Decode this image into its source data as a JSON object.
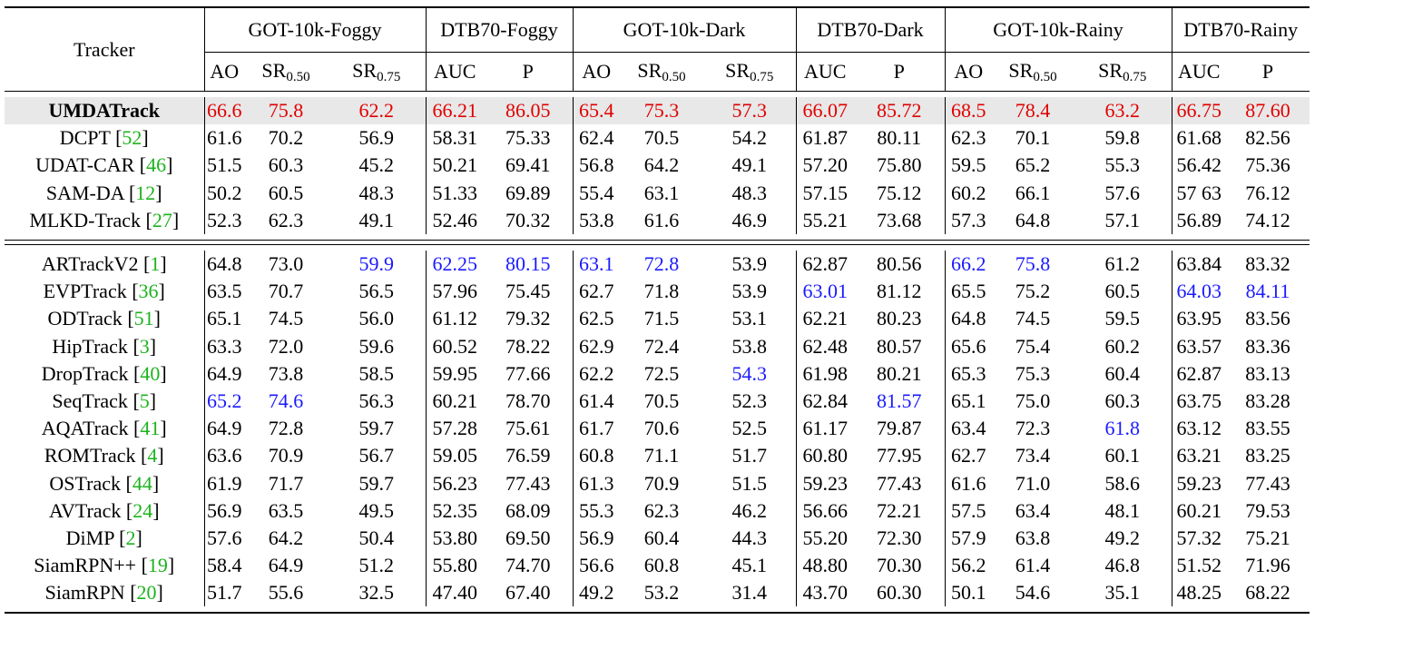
{
  "header": {
    "tracker_label": "Tracker",
    "groups": [
      "GOT-10k-Foggy",
      "DTB70-Foggy",
      "GOT-10k-Dark",
      "DTB70-Dark",
      "GOT-10k-Rainy",
      "DTB70-Rainy"
    ],
    "metrics": {
      "ao": "AO",
      "sr": "SR",
      "sr50_sub": "0.50",
      "sr75_sub": "0.75",
      "auc": "AUC",
      "p": "P"
    }
  },
  "section1": [
    {
      "name": "UMDATrack",
      "cite": "",
      "highlight": true,
      "values": [
        "66.6",
        "75.8",
        "62.2",
        "66.21",
        "86.05",
        "65.4",
        "75.3",
        "57.3",
        "66.07",
        "85.72",
        "68.5",
        "78.4",
        "63.2",
        "66.75",
        "87.60"
      ],
      "colors": [
        "r",
        "r",
        "r",
        "r",
        "r",
        "r",
        "r",
        "r",
        "r",
        "r",
        "r",
        "r",
        "r",
        "r",
        "r"
      ]
    },
    {
      "name": "DCPT",
      "cite": "52",
      "highlight": false,
      "values": [
        "61.6",
        "70.2",
        "56.9",
        "58.31",
        "75.33",
        "62.4",
        "70.5",
        "54.2",
        "61.87",
        "80.11",
        "62.3",
        "70.1",
        "59.8",
        "61.68",
        "82.56"
      ],
      "colors": [
        "",
        "",
        "",
        "",
        "",
        "",
        "",
        "",
        "",
        "",
        "",
        "",
        "",
        "",
        ""
      ]
    },
    {
      "name": "UDAT-CAR",
      "cite": "46",
      "highlight": false,
      "values": [
        "51.5",
        "60.3",
        "45.2",
        "50.21",
        "69.41",
        "56.8",
        "64.2",
        "49.1",
        "57.20",
        "75.80",
        "59.5",
        "65.2",
        "55.3",
        "56.42",
        "75.36"
      ],
      "colors": [
        "",
        "",
        "",
        "",
        "",
        "",
        "",
        "",
        "",
        "",
        "",
        "",
        "",
        "",
        ""
      ]
    },
    {
      "name": "SAM-DA",
      "cite": "12",
      "highlight": false,
      "values": [
        "50.2",
        "60.5",
        "48.3",
        "51.33",
        "69.89",
        "55.4",
        "63.1",
        "48.3",
        "57.15",
        "75.12",
        "60.2",
        "66.1",
        "57.6",
        "57 63",
        "76.12"
      ],
      "colors": [
        "",
        "",
        "",
        "",
        "",
        "",
        "",
        "",
        "",
        "",
        "",
        "",
        "",
        "",
        ""
      ]
    },
    {
      "name": "MLKD-Track",
      "cite": "27",
      "highlight": false,
      "values": [
        "52.3",
        "62.3",
        "49.1",
        "52.46",
        "70.32",
        "53.8",
        "61.6",
        "46.9",
        "55.21",
        "73.68",
        "57.3",
        "64.8",
        "57.1",
        "56.89",
        "74.12"
      ],
      "colors": [
        "",
        "",
        "",
        "",
        "",
        "",
        "",
        "",
        "",
        "",
        "",
        "",
        "",
        "",
        ""
      ]
    }
  ],
  "section2": [
    {
      "name": "ARTrackV2",
      "cite": "1",
      "values": [
        "64.8",
        "73.0",
        "59.9",
        "62.25",
        "80.15",
        "63.1",
        "72.8",
        "53.9",
        "62.87",
        "80.56",
        "66.2",
        "75.8",
        "61.2",
        "63.84",
        "83.32"
      ],
      "colors": [
        "",
        "",
        "b",
        "b",
        "b",
        "b",
        "b",
        "",
        "",
        "",
        "b",
        "b",
        "",
        "",
        ""
      ]
    },
    {
      "name": "EVPTrack",
      "cite": "36",
      "values": [
        "63.5",
        "70.7",
        "56.5",
        "57.96",
        "75.45",
        "62.7",
        "71.8",
        "53.9",
        "63.01",
        "81.12",
        "65.5",
        "75.2",
        "60.5",
        "64.03",
        "84.11"
      ],
      "colors": [
        "",
        "",
        "",
        "",
        "",
        "",
        "",
        "",
        "b",
        "",
        "",
        "",
        "",
        "b",
        "b"
      ]
    },
    {
      "name": "ODTrack",
      "cite": "51",
      "values": [
        "65.1",
        "74.5",
        "56.0",
        "61.12",
        "79.32",
        "62.5",
        "71.5",
        "53.1",
        "62.21",
        "80.23",
        "64.8",
        "74.5",
        "59.5",
        "63.95",
        "83.56"
      ],
      "colors": [
        "",
        "",
        "",
        "",
        "",
        "",
        "",
        "",
        "",
        "",
        "",
        "",
        "",
        "",
        ""
      ]
    },
    {
      "name": "HipTrack",
      "cite": "3",
      "values": [
        "63.3",
        "72.0",
        "59.6",
        "60.52",
        "78.22",
        "62.9",
        "72.4",
        "53.8",
        "62.48",
        "80.57",
        "65.6",
        "75.4",
        "60.2",
        "63.57",
        "83.36"
      ],
      "colors": [
        "",
        "",
        "",
        "",
        "",
        "",
        "",
        "",
        "",
        "",
        "",
        "",
        "",
        "",
        ""
      ]
    },
    {
      "name": "DropTrack",
      "cite": "40",
      "values": [
        "64.9",
        "73.8",
        "58.5",
        "59.95",
        "77.66",
        "62.2",
        "72.5",
        "54.3",
        "61.98",
        "80.21",
        "65.3",
        "75.3",
        "60.4",
        "62.87",
        "83.13"
      ],
      "colors": [
        "",
        "",
        "",
        "",
        "",
        "",
        "",
        "b",
        "",
        "",
        "",
        "",
        "",
        "",
        ""
      ]
    },
    {
      "name": "SeqTrack",
      "cite": "5",
      "values": [
        "65.2",
        "74.6",
        "56.3",
        "60.21",
        "78.70",
        "61.4",
        "70.5",
        "52.3",
        "62.84",
        "81.57",
        "65.1",
        "75.0",
        "60.3",
        "63.75",
        "83.28"
      ],
      "colors": [
        "b",
        "b",
        "",
        "",
        "",
        "",
        "",
        "",
        "",
        "b",
        "",
        "",
        "",
        "",
        ""
      ]
    },
    {
      "name": "AQATrack",
      "cite": "41",
      "values": [
        "64.9",
        "72.8",
        "59.7",
        "57.28",
        "75.61",
        "61.7",
        "70.6",
        "52.5",
        "61.17",
        "79.87",
        "63.4",
        "72.3",
        "61.8",
        "63.12",
        "83.55"
      ],
      "colors": [
        "",
        "",
        "",
        "",
        "",
        "",
        "",
        "",
        "",
        "",
        "",
        "",
        "b",
        "",
        ""
      ]
    },
    {
      "name": "ROMTrack",
      "cite": "4",
      "values": [
        "63.6",
        "70.9",
        "56.7",
        "59.05",
        "76.59",
        "60.8",
        "71.1",
        "51.7",
        "60.80",
        "77.95",
        "62.7",
        "73.4",
        "60.1",
        "63.21",
        "83.25"
      ],
      "colors": [
        "",
        "",
        "",
        "",
        "",
        "",
        "",
        "",
        "",
        "",
        "",
        "",
        "",
        "",
        ""
      ]
    },
    {
      "name": "OSTrack",
      "cite": "44",
      "values": [
        "61.9",
        "71.7",
        "59.7",
        "56.23",
        "77.43",
        "61.3",
        "70.9",
        "51.5",
        "59.23",
        "77.43",
        "61.6",
        "71.0",
        "58.6",
        "59.23",
        "77.43"
      ],
      "colors": [
        "",
        "",
        "",
        "",
        "",
        "",
        "",
        "",
        "",
        "",
        "",
        "",
        "",
        "",
        ""
      ]
    },
    {
      "name": "AVTrack",
      "cite": "24",
      "values": [
        "56.9",
        "63.5",
        "49.5",
        "52.35",
        "68.09",
        "55.3",
        "62.3",
        "46.2",
        "56.66",
        "72.21",
        "57.5",
        "63.4",
        "48.1",
        "60.21",
        "79.53"
      ],
      "colors": [
        "",
        "",
        "",
        "",
        "",
        "",
        "",
        "",
        "",
        "",
        "",
        "",
        "",
        "",
        ""
      ]
    },
    {
      "name": "DiMP",
      "cite": "2",
      "values": [
        "57.6",
        "64.2",
        "50.4",
        "53.80",
        "69.50",
        "56.9",
        "60.4",
        "44.3",
        "55.20",
        "72.30",
        "57.9",
        "63.8",
        "49.2",
        "57.32",
        "75.21"
      ],
      "colors": [
        "",
        "",
        "",
        "",
        "",
        "",
        "",
        "",
        "",
        "",
        "",
        "",
        "",
        "",
        ""
      ]
    },
    {
      "name": "SiamRPN++",
      "cite": "19",
      "values": [
        "58.4",
        "64.9",
        "51.2",
        "55.80",
        "74.70",
        "56.6",
        "60.8",
        "45.1",
        "48.80",
        "70.30",
        "56.2",
        "61.4",
        "46.8",
        "51.52",
        "71.96"
      ],
      "colors": [
        "",
        "",
        "",
        "",
        "",
        "",
        "",
        "",
        "",
        "",
        "",
        "",
        "",
        "",
        ""
      ]
    },
    {
      "name": "SiamRPN",
      "cite": "20",
      "values": [
        "51.7",
        "55.6",
        "32.5",
        "47.40",
        "67.40",
        "49.2",
        "53.2",
        "31.4",
        "43.70",
        "60.30",
        "50.1",
        "54.6",
        "35.1",
        "48.25",
        "68.22"
      ],
      "colors": [
        "",
        "",
        "",
        "",
        "",
        "",
        "",
        "",
        "",
        "",
        "",
        "",
        "",
        "",
        ""
      ]
    }
  ]
}
